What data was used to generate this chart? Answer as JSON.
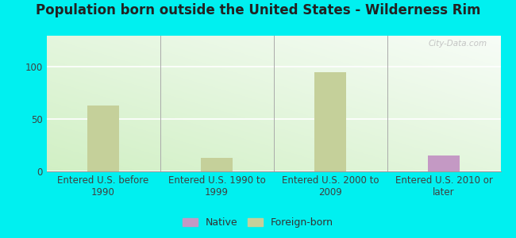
{
  "title": "Population born outside the United States - Wilderness Rim",
  "categories": [
    "Entered U.S. before\n1990",
    "Entered U.S. 1990 to\n1999",
    "Entered U.S. 2000 to\n2009",
    "Entered U.S. 2010 or\nlater"
  ],
  "native_values": [
    0,
    0,
    0,
    15
  ],
  "foreign_values": [
    63,
    13,
    95,
    0
  ],
  "native_color": "#c499c4",
  "foreign_color": "#c5d09a",
  "bar_width": 0.28,
  "ylim": [
    0,
    130
  ],
  "yticks": [
    0,
    50,
    100
  ],
  "bg_bottom_left": "#b8ecd0",
  "bg_top_right": "#f8fef8",
  "outer_background": "#00f0f0",
  "grid_color": "#e0ece0",
  "title_fontsize": 12,
  "tick_fontsize": 8.5,
  "legend_fontsize": 9,
  "watermark_text": "City-Data.com"
}
